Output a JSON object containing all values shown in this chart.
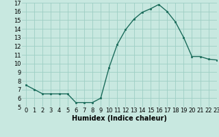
{
  "x": [
    0,
    1,
    2,
    3,
    4,
    5,
    6,
    7,
    8,
    9,
    10,
    11,
    12,
    13,
    14,
    15,
    16,
    17,
    18,
    19,
    20,
    21,
    22,
    23
  ],
  "y": [
    7.5,
    7.0,
    6.5,
    6.5,
    6.5,
    6.5,
    5.5,
    5.5,
    5.5,
    6.0,
    9.5,
    12.2,
    13.9,
    15.1,
    15.9,
    16.3,
    16.8,
    16.0,
    14.8,
    13.0,
    10.8,
    10.8,
    10.5,
    10.4
  ],
  "xlabel": "Humidex (Indice chaleur)",
  "ylim": [
    5,
    17
  ],
  "xlim": [
    -0.5,
    23
  ],
  "yticks": [
    5,
    6,
    7,
    8,
    9,
    10,
    11,
    12,
    13,
    14,
    15,
    16,
    17
  ],
  "xticks": [
    0,
    1,
    2,
    3,
    4,
    5,
    6,
    7,
    8,
    9,
    10,
    11,
    12,
    13,
    14,
    15,
    16,
    17,
    18,
    19,
    20,
    21,
    22,
    23
  ],
  "line_color": "#1a6b5a",
  "marker_color": "#1a6b5a",
  "bg_color": "#c8e8e0",
  "grid_color": "#9ecec4",
  "xlabel_fontsize": 7,
  "tick_fontsize": 6,
  "fig_width": 3.2,
  "fig_height": 2.0,
  "dpi": 100
}
